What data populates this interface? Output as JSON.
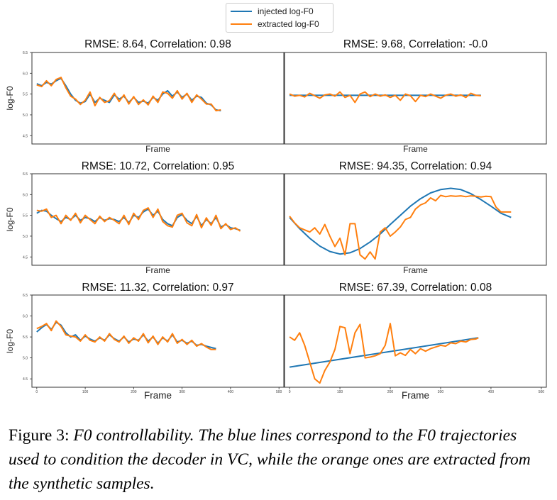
{
  "legend": {
    "items": [
      {
        "label": "injected log-F0",
        "color": "#1f77b4"
      },
      {
        "label": "extracted log-F0",
        "color": "#ff7f0e"
      }
    ]
  },
  "caption": {
    "prefix": "Figure 3: ",
    "text": "F0 controllability. The blue lines correspond to the F0 trajectories used to condition the decoder in VC, while the orange ones are extracted from the synthetic samples."
  },
  "chart_data": [
    {
      "type": "line",
      "title": "RMSE: 8.64,  Correlation: 0.98",
      "xlabel": "Frame",
      "ylabel": "log-F0",
      "xlim": [
        -10,
        510
      ],
      "ylim": [
        4.3,
        6.5
      ],
      "yticks": [
        "4.5",
        "5.0",
        "5.5",
        "6.0",
        "6.5"
      ],
      "xticks": [],
      "series": [
        {
          "name": "injected log-F0",
          "x": [
            0,
            10,
            20,
            30,
            40,
            50,
            60,
            70,
            80,
            90,
            100,
            110,
            120,
            130,
            140,
            150,
            160,
            170,
            180,
            190,
            200,
            210,
            220,
            230,
            240,
            250,
            260,
            270,
            280,
            290,
            300,
            310,
            320,
            330,
            340,
            350,
            360,
            370,
            380
          ],
          "y": [
            5.75,
            5.7,
            5.78,
            5.74,
            5.82,
            5.88,
            5.7,
            5.5,
            5.35,
            5.28,
            5.32,
            5.5,
            5.3,
            5.4,
            5.35,
            5.3,
            5.48,
            5.38,
            5.45,
            5.3,
            5.42,
            5.3,
            5.33,
            5.28,
            5.42,
            5.35,
            5.5,
            5.58,
            5.45,
            5.55,
            5.42,
            5.5,
            5.35,
            5.45,
            5.42,
            5.28,
            5.24,
            5.12,
            5.1
          ]
        },
        {
          "name": "extracted log-F0",
          "x": [
            0,
            10,
            20,
            30,
            40,
            50,
            60,
            70,
            80,
            90,
            100,
            110,
            120,
            130,
            140,
            150,
            160,
            170,
            180,
            190,
            200,
            210,
            220,
            230,
            240,
            250,
            260,
            270,
            280,
            290,
            300,
            310,
            320,
            330,
            340,
            350,
            360,
            370,
            380
          ],
          "y": [
            5.72,
            5.68,
            5.82,
            5.7,
            5.85,
            5.9,
            5.65,
            5.45,
            5.38,
            5.25,
            5.35,
            5.55,
            5.22,
            5.42,
            5.3,
            5.34,
            5.52,
            5.32,
            5.48,
            5.26,
            5.44,
            5.25,
            5.36,
            5.24,
            5.45,
            5.3,
            5.55,
            5.52,
            5.4,
            5.58,
            5.38,
            5.52,
            5.3,
            5.48,
            5.38,
            5.26,
            5.26,
            5.1,
            5.12
          ]
        }
      ]
    },
    {
      "type": "line",
      "title": "RMSE: 9.68,  Correlation: -0.0",
      "xlabel": "Frame",
      "ylabel": "",
      "xlim": [
        -10,
        510
      ],
      "ylim": [
        4.3,
        6.5
      ],
      "yticks": [],
      "xticks": [],
      "series": [
        {
          "name": "injected log-F0",
          "x": [
            0,
            380
          ],
          "y": [
            5.47,
            5.47
          ]
        },
        {
          "name": "extracted log-F0",
          "x": [
            0,
            10,
            20,
            30,
            40,
            50,
            60,
            70,
            80,
            90,
            100,
            110,
            120,
            130,
            140,
            150,
            160,
            170,
            180,
            190,
            200,
            210,
            220,
            230,
            240,
            250,
            260,
            270,
            280,
            290,
            300,
            310,
            320,
            330,
            340,
            350,
            360,
            370,
            380
          ],
          "y": [
            5.5,
            5.45,
            5.47,
            5.43,
            5.52,
            5.46,
            5.4,
            5.48,
            5.5,
            5.45,
            5.55,
            5.42,
            5.47,
            5.3,
            5.5,
            5.55,
            5.44,
            5.5,
            5.45,
            5.48,
            5.42,
            5.47,
            5.35,
            5.5,
            5.46,
            5.32,
            5.47,
            5.44,
            5.5,
            5.45,
            5.4,
            5.47,
            5.5,
            5.45,
            5.48,
            5.42,
            5.52,
            5.47,
            5.46
          ]
        }
      ]
    },
    {
      "type": "line",
      "title": "RMSE: 10.72,  Correlation: 0.95",
      "xlabel": "Frame",
      "ylabel": "log-F0",
      "xlim": [
        -10,
        510
      ],
      "ylim": [
        4.3,
        6.5
      ],
      "yticks": [
        "4.5",
        "5.0",
        "5.5",
        "6.0",
        "6.5"
      ],
      "xticks": [],
      "series": [
        {
          "name": "injected log-F0",
          "x": [
            0,
            10,
            20,
            30,
            40,
            50,
            60,
            70,
            80,
            90,
            100,
            110,
            120,
            130,
            140,
            150,
            160,
            170,
            180,
            190,
            200,
            210,
            220,
            230,
            240,
            250,
            260,
            270,
            280,
            290,
            300,
            310,
            320,
            330,
            340,
            350,
            360,
            370,
            380,
            390,
            400,
            410,
            420
          ],
          "y": [
            5.55,
            5.62,
            5.6,
            5.5,
            5.42,
            5.35,
            5.45,
            5.4,
            5.5,
            5.38,
            5.45,
            5.42,
            5.35,
            5.45,
            5.38,
            5.42,
            5.4,
            5.35,
            5.45,
            5.32,
            5.5,
            5.45,
            5.58,
            5.65,
            5.5,
            5.6,
            5.4,
            5.3,
            5.25,
            5.45,
            5.52,
            5.38,
            5.3,
            5.48,
            5.25,
            5.4,
            5.3,
            5.45,
            5.22,
            5.28,
            5.2,
            5.18,
            5.14
          ]
        },
        {
          "name": "extracted log-F0",
          "x": [
            0,
            10,
            20,
            30,
            40,
            50,
            60,
            70,
            80,
            90,
            100,
            110,
            120,
            130,
            140,
            150,
            160,
            170,
            180,
            190,
            200,
            210,
            220,
            230,
            240,
            250,
            260,
            270,
            280,
            290,
            300,
            310,
            320,
            330,
            340,
            350,
            360,
            370,
            380,
            390,
            400,
            410,
            420
          ],
          "y": [
            5.62,
            5.6,
            5.65,
            5.45,
            5.5,
            5.3,
            5.5,
            5.38,
            5.55,
            5.32,
            5.5,
            5.4,
            5.3,
            5.48,
            5.35,
            5.45,
            5.38,
            5.3,
            5.5,
            5.28,
            5.55,
            5.4,
            5.62,
            5.68,
            5.45,
            5.65,
            5.35,
            5.25,
            5.22,
            5.5,
            5.55,
            5.32,
            5.25,
            5.52,
            5.2,
            5.44,
            5.26,
            5.5,
            5.18,
            5.3,
            5.16,
            5.2,
            5.12
          ]
        }
      ]
    },
    {
      "type": "line",
      "title": "RMSE: 94.35,  Correlation: 0.94",
      "xlabel": "Frame",
      "ylabel": "",
      "xlim": [
        -10,
        510
      ],
      "ylim": [
        4.3,
        6.5
      ],
      "yticks": [],
      "xticks": [],
      "series": [
        {
          "name": "injected log-F0",
          "x": [
            0,
            20,
            40,
            60,
            80,
            100,
            120,
            140,
            160,
            180,
            200,
            220,
            240,
            260,
            280,
            300,
            320,
            340,
            360,
            380,
            400,
            420,
            440
          ],
          "y": [
            5.45,
            5.18,
            4.95,
            4.76,
            4.63,
            4.57,
            4.6,
            4.7,
            4.86,
            5.05,
            5.28,
            5.5,
            5.72,
            5.9,
            6.04,
            6.12,
            6.15,
            6.12,
            6.02,
            5.88,
            5.72,
            5.55,
            5.45
          ]
        },
        {
          "name": "extracted log-F0",
          "x": [
            0,
            10,
            20,
            30,
            40,
            50,
            60,
            70,
            80,
            90,
            100,
            110,
            120,
            130,
            140,
            150,
            160,
            170,
            180,
            190,
            200,
            210,
            220,
            230,
            240,
            250,
            260,
            270,
            280,
            290,
            300,
            310,
            320,
            330,
            340,
            350,
            360,
            370,
            380,
            390,
            400,
            410,
            420,
            430,
            440
          ],
          "y": [
            5.48,
            5.32,
            5.2,
            5.15,
            5.1,
            5.2,
            5.05,
            5.28,
            5.0,
            4.75,
            4.95,
            4.55,
            5.3,
            5.3,
            4.55,
            4.45,
            4.62,
            4.45,
            5.1,
            5.2,
            5.0,
            5.1,
            5.22,
            5.4,
            5.45,
            5.65,
            5.75,
            5.8,
            5.92,
            5.85,
            5.98,
            5.95,
            5.97,
            5.96,
            5.97,
            5.95,
            5.97,
            5.96,
            5.94,
            5.96,
            5.95,
            5.7,
            5.58,
            5.58,
            5.58
          ]
        }
      ]
    },
    {
      "type": "line",
      "title": "RMSE: 11.32,  Correlation: 0.97",
      "xlabel": "Frame",
      "ylabel": "log-F0",
      "xlim": [
        -10,
        510
      ],
      "ylim": [
        4.3,
        6.5
      ],
      "yticks": [
        "4.5",
        "5.0",
        "5.5",
        "6.0",
        "6.5"
      ],
      "xticks": [
        "0",
        "100",
        "200",
        "300",
        "400",
        "500"
      ],
      "series": [
        {
          "name": "injected log-F0",
          "x": [
            0,
            10,
            20,
            30,
            40,
            50,
            60,
            70,
            80,
            90,
            100,
            110,
            120,
            130,
            140,
            150,
            160,
            170,
            180,
            190,
            200,
            210,
            220,
            230,
            240,
            250,
            260,
            270,
            280,
            290,
            300,
            310,
            320,
            330,
            340,
            350,
            360,
            370
          ],
          "y": [
            5.62,
            5.72,
            5.8,
            5.68,
            5.85,
            5.78,
            5.6,
            5.5,
            5.55,
            5.42,
            5.52,
            5.45,
            5.4,
            5.48,
            5.42,
            5.55,
            5.46,
            5.4,
            5.5,
            5.38,
            5.45,
            5.42,
            5.55,
            5.4,
            5.5,
            5.35,
            5.48,
            5.4,
            5.55,
            5.38,
            5.42,
            5.35,
            5.4,
            5.3,
            5.32,
            5.28,
            5.25,
            5.22
          ]
        },
        {
          "name": "extracted log-F0",
          "x": [
            0,
            10,
            20,
            30,
            40,
            50,
            60,
            70,
            80,
            90,
            100,
            110,
            120,
            130,
            140,
            150,
            160,
            170,
            180,
            190,
            200,
            210,
            220,
            230,
            240,
            250,
            260,
            270,
            280,
            290,
            300,
            310,
            320,
            330,
            340,
            350,
            360,
            370
          ],
          "y": [
            5.7,
            5.75,
            5.82,
            5.65,
            5.88,
            5.75,
            5.55,
            5.52,
            5.5,
            5.4,
            5.55,
            5.42,
            5.38,
            5.5,
            5.4,
            5.58,
            5.44,
            5.38,
            5.52,
            5.35,
            5.48,
            5.4,
            5.58,
            5.36,
            5.52,
            5.32,
            5.5,
            5.38,
            5.58,
            5.35,
            5.44,
            5.32,
            5.42,
            5.28,
            5.34,
            5.26,
            5.2,
            5.2
          ]
        }
      ]
    },
    {
      "type": "line",
      "title": "RMSE: 67.39,  Correlation: 0.08",
      "xlabel": "Frame",
      "ylabel": "",
      "xlim": [
        -10,
        510
      ],
      "ylim": [
        4.3,
        6.5
      ],
      "yticks": [],
      "xticks": [
        "0",
        "100",
        "200",
        "300",
        "400",
        "500"
      ],
      "series": [
        {
          "name": "injected log-F0",
          "x": [
            0,
            375
          ],
          "y": [
            4.78,
            5.48
          ]
        },
        {
          "name": "extracted log-F0",
          "x": [
            0,
            10,
            20,
            30,
            40,
            50,
            60,
            70,
            80,
            90,
            100,
            110,
            120,
            130,
            140,
            150,
            160,
            170,
            180,
            190,
            200,
            210,
            220,
            230,
            240,
            250,
            260,
            270,
            280,
            290,
            300,
            310,
            320,
            330,
            340,
            350,
            360,
            370,
            375
          ],
          "y": [
            5.5,
            5.42,
            5.6,
            5.3,
            4.9,
            4.5,
            4.4,
            4.7,
            4.9,
            5.2,
            5.75,
            5.72,
            5.1,
            5.6,
            5.8,
            5.0,
            5.02,
            5.05,
            5.1,
            5.3,
            5.82,
            5.05,
            5.12,
            5.06,
            5.2,
            5.1,
            5.22,
            5.16,
            5.22,
            5.26,
            5.3,
            5.28,
            5.36,
            5.34,
            5.4,
            5.38,
            5.44,
            5.45,
            5.48
          ]
        }
      ]
    }
  ]
}
